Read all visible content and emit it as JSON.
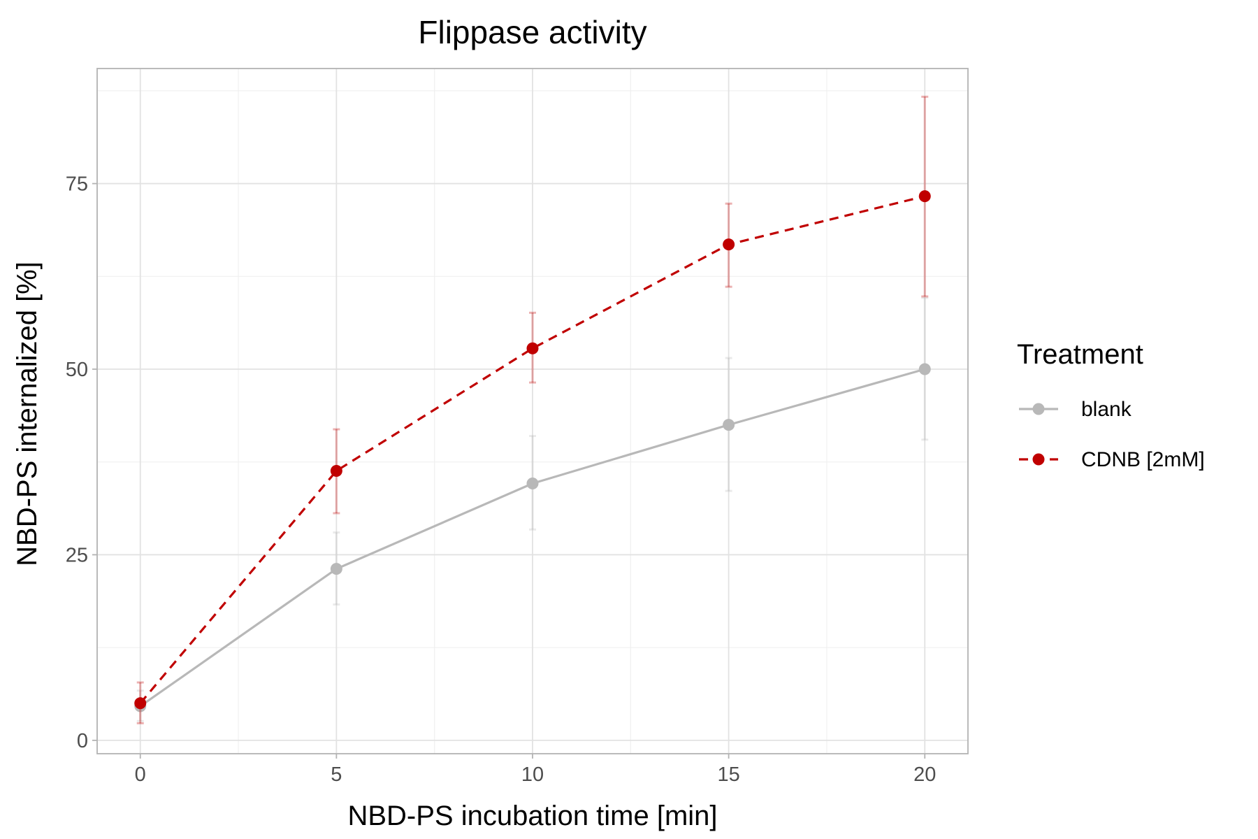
{
  "chart_data": {
    "type": "line",
    "title": "Flippase activity",
    "xlabel": "NBD-PS incubation time [min]",
    "ylabel": "NBD-PS internalized [%]",
    "x": [
      0,
      5,
      10,
      15,
      20
    ],
    "xlim": [
      -1.1,
      21.1
    ],
    "ylim": [
      -1.8,
      90.5
    ],
    "x_ticks": [
      0,
      5,
      10,
      15,
      20
    ],
    "y_ticks": [
      0,
      25,
      50,
      75
    ],
    "x_tick_labels": [
      "0",
      "5",
      "10",
      "15",
      "20"
    ],
    "y_tick_labels": [
      "0",
      "25",
      "50",
      "75"
    ],
    "grid": true,
    "legend": {
      "title": "Treatment",
      "position": "right"
    },
    "series": [
      {
        "name": "blank",
        "color": "#b8b8b8",
        "line_style": "solid",
        "values": [
          4.6,
          23.1,
          34.6,
          42.5,
          50.0
        ],
        "error_low": [
          2.6,
          18.3,
          28.4,
          33.6,
          40.5
        ],
        "error_high": [
          6.7,
          28.0,
          41.0,
          51.5,
          59.6
        ]
      },
      {
        "name": "CDNB [2mM]",
        "color": "#c00000",
        "line_style": "dashed",
        "values": [
          5.0,
          36.3,
          52.8,
          66.8,
          73.3
        ],
        "error_low": [
          2.3,
          30.6,
          48.2,
          61.1,
          59.8
        ],
        "error_high": [
          7.8,
          41.9,
          57.6,
          72.3,
          86.7
        ]
      }
    ]
  }
}
